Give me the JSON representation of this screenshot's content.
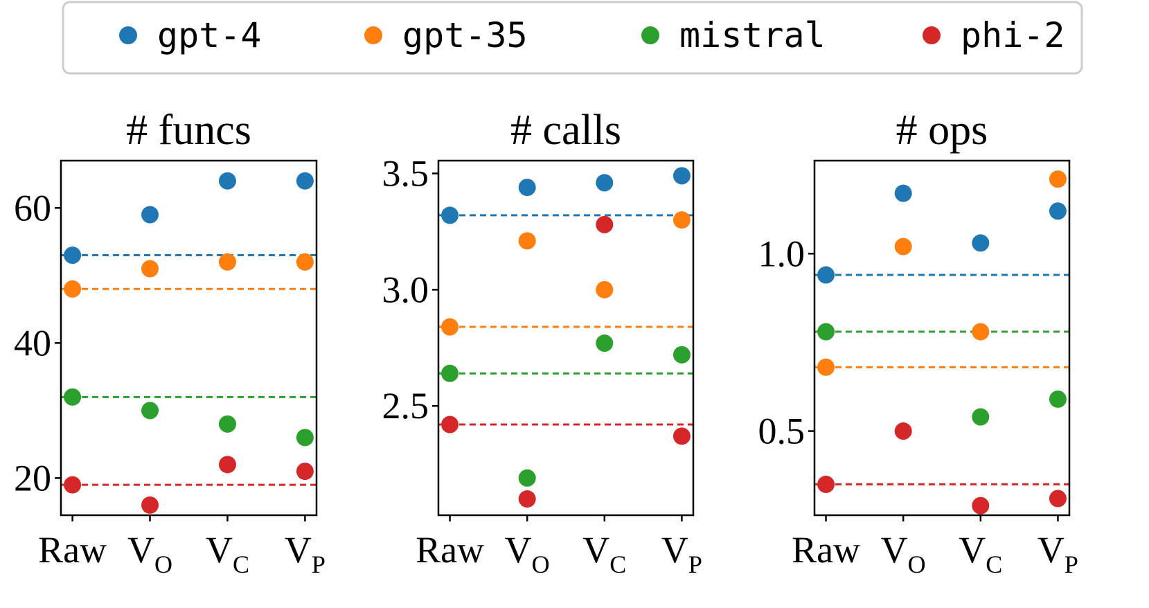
{
  "colors": {
    "gpt-4": "#1f77b4",
    "gpt-35": "#ff7f0e",
    "mistral": "#2ca02c",
    "phi-2": "#d62728"
  },
  "legend": {
    "entries": [
      "gpt-4",
      "gpt-35",
      "mistral",
      "phi-2"
    ]
  },
  "chart_data": [
    {
      "type": "scatter",
      "title": "# funcs",
      "categories": [
        "Raw",
        "V_O",
        "V_C",
        "V_P"
      ],
      "category_labels": [
        {
          "main": "Raw",
          "sub": ""
        },
        {
          "main": "V",
          "sub": "O"
        },
        {
          "main": "V",
          "sub": "C"
        },
        {
          "main": "V",
          "sub": "P"
        }
      ],
      "ylim": [
        14.5,
        67
      ],
      "yticks": [
        20,
        40,
        60
      ],
      "ytick_labels": [
        "20",
        "40",
        "60"
      ],
      "series": [
        {
          "name": "gpt-4",
          "values": [
            53,
            59,
            64,
            64
          ],
          "baseline": 53
        },
        {
          "name": "gpt-35",
          "values": [
            48,
            51,
            52,
            52
          ],
          "baseline": 48
        },
        {
          "name": "mistral",
          "values": [
            32,
            30,
            28,
            26
          ],
          "baseline": 32
        },
        {
          "name": "phi-2",
          "values": [
            19,
            16,
            22,
            21
          ],
          "baseline": 19
        }
      ]
    },
    {
      "type": "scatter",
      "title": "# calls",
      "categories": [
        "Raw",
        "V_O",
        "V_C",
        "V_P"
      ],
      "category_labels": [
        {
          "main": "Raw",
          "sub": ""
        },
        {
          "main": "V",
          "sub": "O"
        },
        {
          "main": "V",
          "sub": "C"
        },
        {
          "main": "V",
          "sub": "P"
        }
      ],
      "ylim": [
        2.03,
        3.555
      ],
      "yticks": [
        2.5,
        3.0,
        3.5
      ],
      "ytick_labels": [
        "2.5",
        "3.0",
        "3.5"
      ],
      "series": [
        {
          "name": "gpt-4",
          "values": [
            3.32,
            3.44,
            3.46,
            3.49
          ],
          "baseline": 3.32
        },
        {
          "name": "gpt-35",
          "values": [
            2.84,
            3.21,
            3.0,
            3.3
          ],
          "baseline": 2.84
        },
        {
          "name": "mistral",
          "values": [
            2.64,
            2.19,
            2.77,
            2.72
          ],
          "baseline": 2.64
        },
        {
          "name": "phi-2",
          "values": [
            2.42,
            2.1,
            3.28,
            2.37
          ],
          "baseline": 2.42
        }
      ]
    },
    {
      "type": "scatter",
      "title": "# ops",
      "categories": [
        "Raw",
        "V_O",
        "V_C",
        "V_P"
      ],
      "category_labels": [
        {
          "main": "Raw",
          "sub": ""
        },
        {
          "main": "V",
          "sub": "O"
        },
        {
          "main": "V",
          "sub": "C"
        },
        {
          "main": "V",
          "sub": "P"
        }
      ],
      "ylim": [
        0.263,
        1.262
      ],
      "yticks": [
        0.5,
        1.0
      ],
      "ytick_labels": [
        "0.5",
        "1.0"
      ],
      "series": [
        {
          "name": "gpt-4",
          "values": [
            0.94,
            1.17,
            1.03,
            1.12
          ],
          "baseline": 0.94
        },
        {
          "name": "gpt-35",
          "values": [
            0.68,
            1.02,
            0.78,
            1.21
          ],
          "baseline": 0.68
        },
        {
          "name": "mistral",
          "values": [
            0.78,
            null,
            0.54,
            0.59
          ],
          "baseline": 0.78
        },
        {
          "name": "phi-2",
          "values": [
            0.35,
            0.5,
            0.29,
            0.31
          ],
          "baseline": 0.35
        }
      ]
    }
  ]
}
